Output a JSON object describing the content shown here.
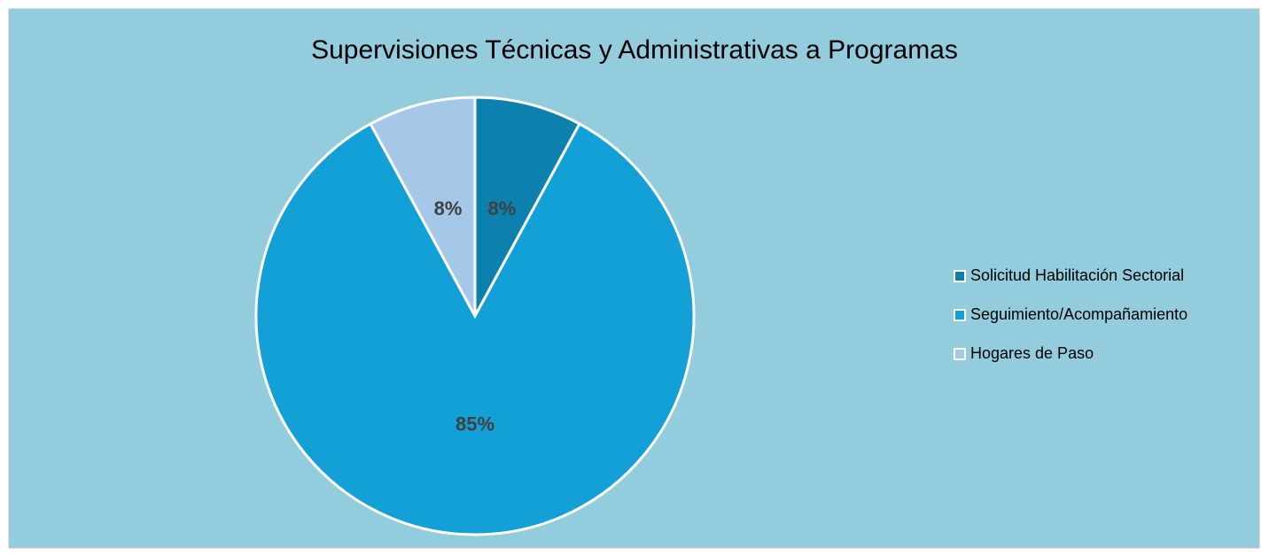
{
  "chart_data": {
    "type": "pie",
    "title": "Supervisiones Técnicas y Administrativas a Programas",
    "categories": [
      "Solicitud Habilitación Sectorial",
      "Seguimiento/Acompañamiento",
      "Hogares de Paso"
    ],
    "values": [
      8,
      85,
      8
    ],
    "value_labels": [
      "8%",
      "85%",
      "8%"
    ],
    "colors": [
      "#0e80ae",
      "#12a0d7",
      "#a5c8e8"
    ],
    "legend": "right"
  }
}
